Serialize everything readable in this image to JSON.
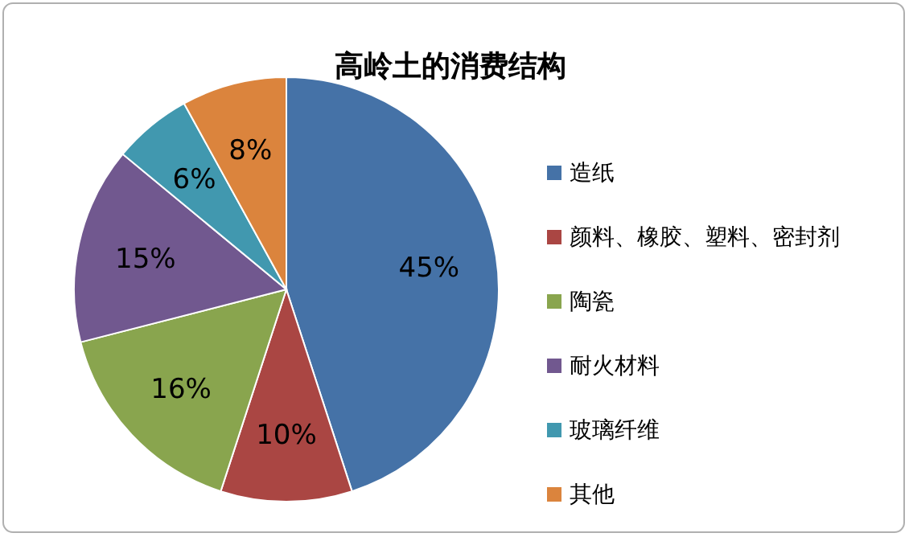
{
  "chart_data": {
    "type": "pie",
    "title": "高岭土的消费结构",
    "categories": [
      "造纸",
      "颜料、橡胶、塑料、密封剂",
      "陶瓷",
      "耐火材料",
      "玻璃纤维",
      "其他"
    ],
    "values": [
      45,
      10,
      16,
      15,
      6,
      8
    ],
    "colors": [
      "#4572a7",
      "#aa4643",
      "#89a54e",
      "#71588f",
      "#4198af",
      "#db843d"
    ],
    "value_labels": [
      "45%",
      "10%",
      "16%",
      "15%",
      "6%",
      "8%"
    ],
    "legend": "right"
  }
}
